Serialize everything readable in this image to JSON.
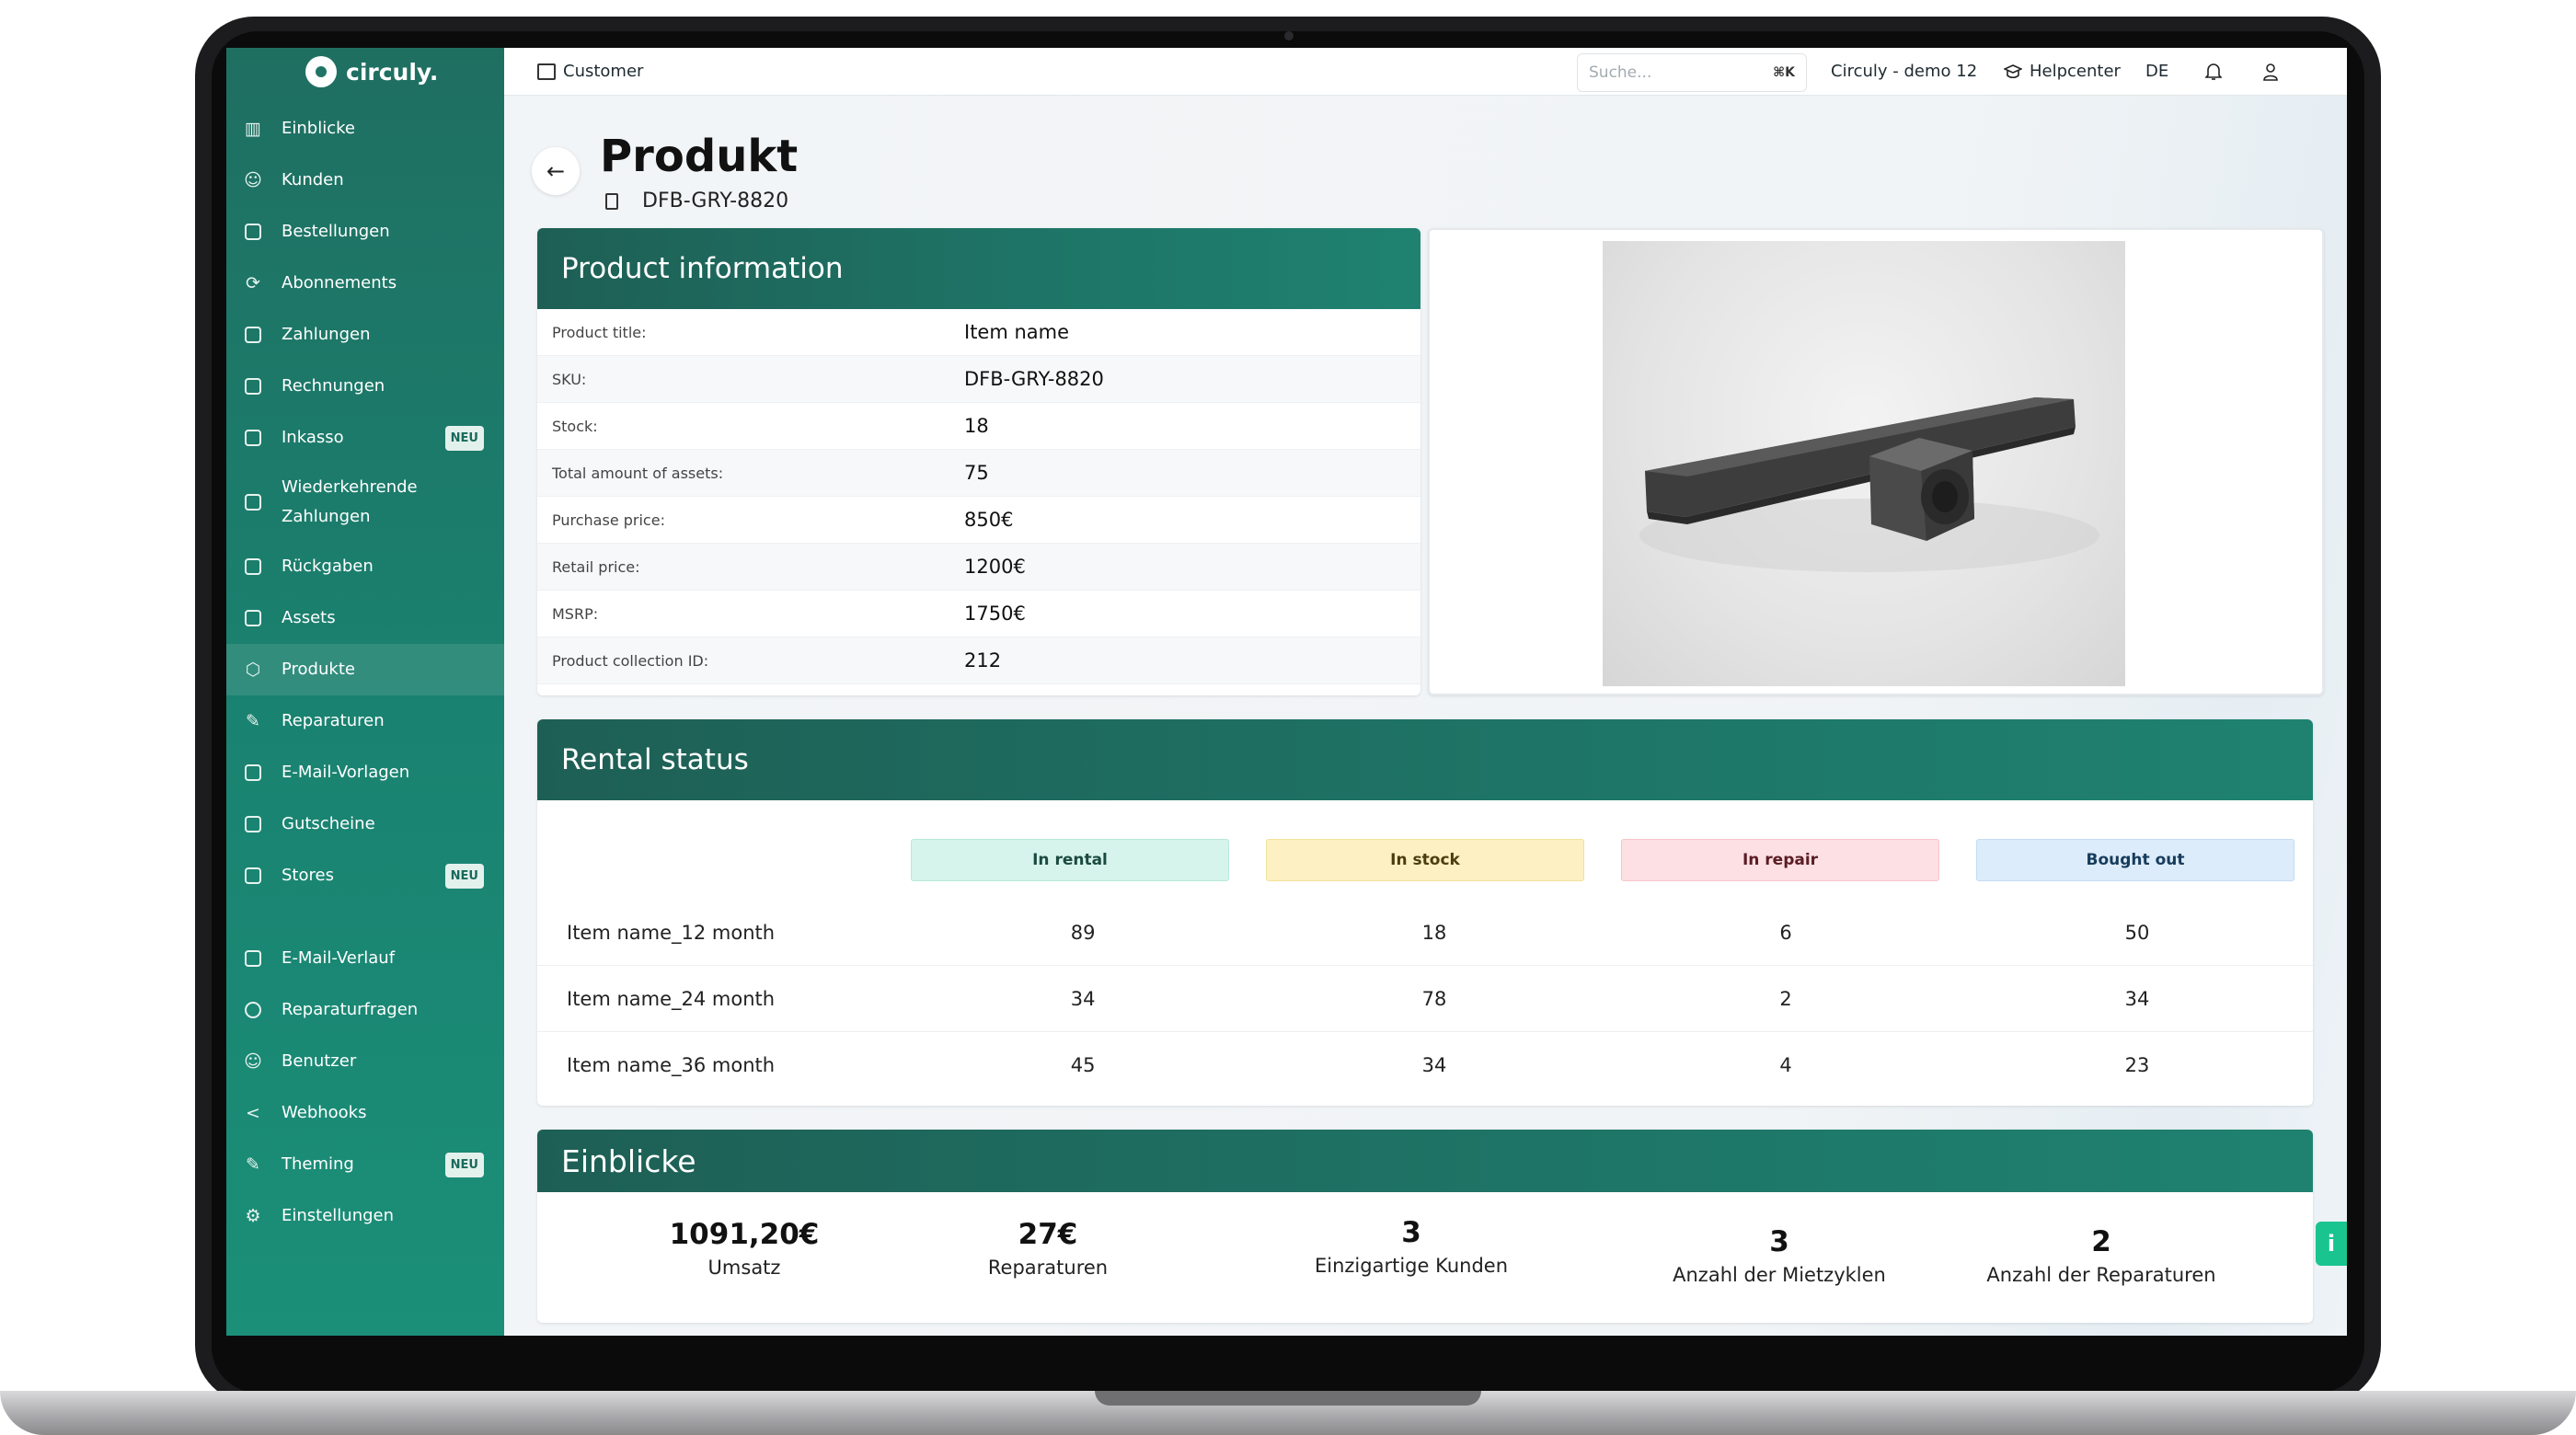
{
  "app": {
    "logo_text": "circuly."
  },
  "sidebar": {
    "items": [
      {
        "label": "Einblicke",
        "icon": "bar-chart-icon"
      },
      {
        "label": "Kunden",
        "icon": "users-icon"
      },
      {
        "label": "Bestellungen",
        "icon": "shopping-bag-icon"
      },
      {
        "label": "Abonnements",
        "icon": "refresh-icon"
      },
      {
        "label": "Zahlungen",
        "icon": "credit-card-icon"
      },
      {
        "label": "Rechnungen",
        "icon": "document-icon"
      },
      {
        "label": "Inkasso",
        "icon": "collection-icon",
        "badge": "NEU"
      },
      {
        "label": "Wiederkehrende Zahlungen",
        "icon": "recurring-payment-icon"
      },
      {
        "label": "Rückgaben",
        "icon": "truck-icon"
      },
      {
        "label": "Assets",
        "icon": "warehouse-icon"
      },
      {
        "label": "Produkte",
        "icon": "cube-icon",
        "active": true
      },
      {
        "label": "Reparaturen",
        "icon": "wrench-icon"
      },
      {
        "label": "E-Mail-Vorlagen",
        "icon": "mail-icon"
      },
      {
        "label": "Gutscheine",
        "icon": "voucher-icon"
      },
      {
        "label": "Stores",
        "icon": "store-icon",
        "badge": "NEU"
      },
      {
        "label": "E-Mail-Verlauf",
        "icon": "mail-history-icon"
      },
      {
        "label": "Reparaturfragen",
        "icon": "question-icon"
      },
      {
        "label": "Benutzer",
        "icon": "user-group-icon"
      },
      {
        "label": "Webhooks",
        "icon": "share-icon"
      },
      {
        "label": "Theming",
        "icon": "brush-icon",
        "badge": "NEU"
      },
      {
        "label": "Einstellungen",
        "icon": "gear-icon"
      }
    ]
  },
  "topbar": {
    "section": "Customer",
    "search_placeholder": "Suche...",
    "search_shortcut": "⌘K",
    "account": "Circuly - demo 12",
    "help": "Helpcenter",
    "language": "DE"
  },
  "page": {
    "title": "Produkt",
    "sku": "DFB-GRY-8820"
  },
  "product_info": {
    "heading": "Product information",
    "rows": [
      {
        "key": "Product title:",
        "value": "Item name"
      },
      {
        "key": "SKU:",
        "value": "DFB-GRY-8820"
      },
      {
        "key": "Stock:",
        "value": "18"
      },
      {
        "key": "Total amount of assets:",
        "value": "75"
      },
      {
        "key": "Purchase price:",
        "value": "850€"
      },
      {
        "key": "Retail price:",
        "value": "1200€"
      },
      {
        "key": "MSRP:",
        "value": "1750€"
      },
      {
        "key": "Product collection ID:",
        "value": "212"
      }
    ]
  },
  "rental_status": {
    "heading": "Rental status",
    "columns": [
      "In rental",
      "In stock",
      "In repair",
      "Bought out"
    ],
    "rows": [
      {
        "name": "Item name_12 month",
        "values": [
          "89",
          "18",
          "6",
          "50"
        ]
      },
      {
        "name": "Item name_24 month",
        "values": [
          "34",
          "78",
          "2",
          "34"
        ]
      },
      {
        "name": "Item name_36 month",
        "values": [
          "45",
          "34",
          "4",
          "23"
        ]
      }
    ]
  },
  "insights": {
    "heading": "Einblicke",
    "kpis": [
      {
        "value": "1091,20€",
        "label": "Umsatz"
      },
      {
        "value": "27€",
        "label": "Reparaturen"
      },
      {
        "value": "3",
        "label": "Einzigartige Kunden"
      },
      {
        "value": "3",
        "label": "Anzahl der Mietzyklen"
      },
      {
        "value": "2",
        "label": "Anzahl der Reparaturen"
      }
    ]
  },
  "colors": {
    "brand_green": "#1e7466",
    "sidebar_green": "#1a8371",
    "info_tab": "#19c48f"
  }
}
